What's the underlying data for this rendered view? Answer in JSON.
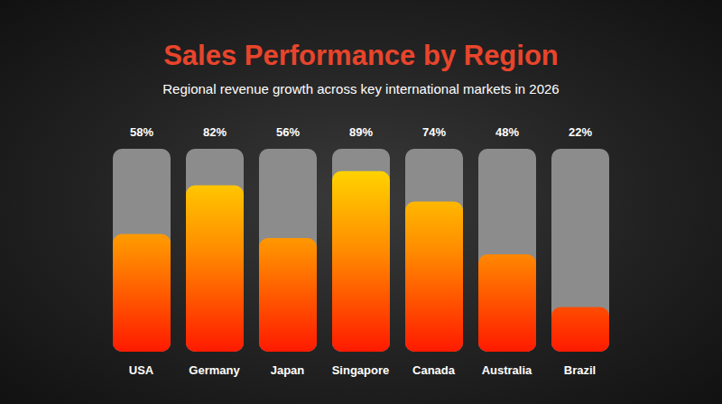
{
  "chart_data": {
    "type": "bar",
    "title": "Sales Performance by Region",
    "subtitle": "Regional revenue growth across key international markets in 2026",
    "categories": [
      "USA",
      "Germany",
      "Japan",
      "Singapore",
      "Canada",
      "Australia",
      "Brazil"
    ],
    "values": [
      58,
      82,
      56,
      89,
      74,
      48,
      22
    ],
    "value_labels": [
      "58%",
      "82%",
      "56%",
      "89%",
      "74%",
      "48%",
      "22%"
    ],
    "color": "#ff8c00",
    "ylim": [
      0,
      100
    ],
    "grid": false,
    "data_labels": true,
    "tick_labels": "x"
  }
}
